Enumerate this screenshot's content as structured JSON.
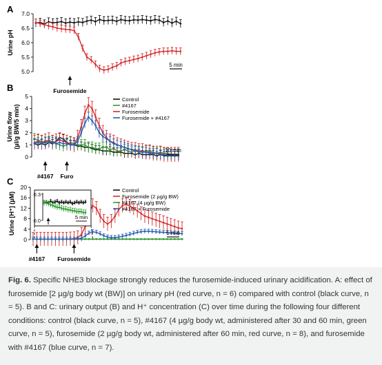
{
  "chart_data": [
    {
      "panel": "A",
      "type": "line",
      "ylabel": "Urine pH",
      "ylim": [
        5.0,
        7.0
      ],
      "yticks": [
        "5.0",
        "5.5",
        "6.0",
        "6.5",
        "7.0"
      ],
      "xlim": [
        0,
        35
      ],
      "time_scale_label": "5 min",
      "annotations": [
        {
          "label": "Furosemide",
          "x": 8
        }
      ],
      "series": [
        {
          "name": "Control",
          "color": "#111111",
          "err": 0.14,
          "x": [
            0,
            1,
            2,
            3,
            4,
            5,
            6,
            7,
            8,
            9,
            10,
            11,
            12,
            13,
            14,
            15,
            16,
            17,
            18,
            19,
            20,
            21,
            22,
            23,
            24,
            25,
            26,
            27,
            28,
            29,
            30,
            31,
            32,
            33,
            34
          ],
          "y": [
            6.68,
            6.7,
            6.65,
            6.72,
            6.69,
            6.7,
            6.73,
            6.68,
            6.71,
            6.69,
            6.72,
            6.7,
            6.75,
            6.78,
            6.73,
            6.8,
            6.76,
            6.77,
            6.78,
            6.74,
            6.8,
            6.77,
            6.76,
            6.79,
            6.78,
            6.8,
            6.78,
            6.76,
            6.8,
            6.78,
            6.7,
            6.75,
            6.68,
            6.74,
            6.66
          ]
        },
        {
          "name": "Furosemide",
          "color": "#d62b2b",
          "err": 0.12,
          "x": [
            0,
            1,
            2,
            3,
            4,
            5,
            6,
            7,
            8,
            9,
            10,
            11,
            12,
            13,
            14,
            15,
            16,
            17,
            18,
            19,
            20,
            21,
            22,
            23,
            24,
            25,
            26,
            27,
            28,
            29,
            30,
            31,
            32,
            33,
            34
          ],
          "y": [
            6.7,
            6.66,
            6.62,
            6.58,
            6.55,
            6.5,
            6.48,
            6.46,
            6.45,
            6.42,
            6.2,
            5.8,
            5.5,
            5.4,
            5.25,
            5.1,
            5.05,
            5.08,
            5.15,
            5.2,
            5.3,
            5.35,
            5.38,
            5.42,
            5.45,
            5.5,
            5.55,
            5.6,
            5.65,
            5.68,
            5.7,
            5.7,
            5.72,
            5.7,
            5.7
          ]
        }
      ]
    },
    {
      "panel": "B",
      "type": "line",
      "ylabel": "Urine flow\n(µl/g BW/5 min)",
      "ylim": [
        0,
        5
      ],
      "yticks": [
        "0",
        "1",
        "2",
        "3",
        "4",
        "5"
      ],
      "xlim": [
        0,
        41
      ],
      "time_scale_label": "10 min",
      "annotations": [
        {
          "label": "#4167",
          "x": 3
        },
        {
          "label": "Furo",
          "x": 9
        }
      ],
      "legend": {
        "position": "top-right",
        "entries": [
          "Control",
          "#4167",
          "Furosemide",
          "Furosemide + #4167"
        ]
      },
      "series": [
        {
          "name": "Control",
          "color": "#111111",
          "err": 0.35,
          "x": [
            0,
            1,
            2,
            3,
            4,
            5,
            6,
            7,
            8,
            9,
            10,
            11,
            12,
            13,
            14,
            15,
            16,
            17,
            18,
            19,
            20,
            21,
            22,
            23,
            24,
            25,
            26,
            27,
            28,
            29,
            30,
            31,
            32,
            33,
            34,
            35,
            36,
            37,
            38,
            39,
            40
          ],
          "y": [
            1.1,
            1.0,
            1.1,
            1.0,
            1.2,
            1.1,
            1.3,
            1.6,
            1.5,
            1.2,
            1.0,
            1.0,
            0.9,
            0.9,
            0.8,
            0.8,
            0.7,
            0.6,
            0.6,
            0.5,
            0.5,
            0.5,
            0.4,
            0.4,
            0.4,
            0.3,
            0.3,
            0.3,
            0.2,
            0.3,
            0.2,
            0.2,
            0.2,
            0.2,
            0.1,
            0.2,
            0.1,
            0.1,
            0.1,
            0.1,
            0.1
          ]
        },
        {
          "name": "#4167",
          "color": "#2e9e2e",
          "err": 0.45,
          "x": [
            0,
            1,
            2,
            3,
            4,
            5,
            6,
            7,
            8,
            9,
            10,
            11,
            12,
            13,
            14,
            15,
            16,
            17,
            18,
            19,
            20,
            21,
            22,
            23,
            24,
            25,
            26,
            27,
            28,
            29,
            30,
            31,
            32,
            33,
            34,
            35,
            36,
            37,
            38,
            39,
            40
          ],
          "y": [
            1.5,
            1.4,
            1.3,
            1.2,
            1.2,
            1.3,
            1.1,
            1.0,
            0.9,
            1.0,
            1.2,
            1.1,
            1.0,
            1.0,
            1.0,
            0.8,
            0.8,
            0.7,
            0.7,
            0.8,
            0.8,
            0.6,
            0.7,
            0.5,
            0.5,
            0.6,
            0.5,
            0.4,
            0.5,
            0.4,
            0.4,
            0.5,
            0.5,
            0.4,
            0.3,
            0.4,
            0.3,
            0.3,
            0.2,
            0.2,
            0.2
          ]
        },
        {
          "name": "Furosemide",
          "color": "#d62b2b",
          "err": 0.6,
          "x": [
            0,
            1,
            2,
            3,
            4,
            5,
            6,
            7,
            8,
            9,
            10,
            11,
            12,
            13,
            14,
            15,
            16,
            17,
            18,
            19,
            20,
            21,
            22,
            23,
            24,
            25,
            26,
            27,
            28,
            29,
            30,
            31,
            32,
            33,
            34,
            35,
            36,
            37,
            38,
            39,
            40
          ],
          "y": [
            1.2,
            1.3,
            1.2,
            1.3,
            1.4,
            1.2,
            1.3,
            1.4,
            1.3,
            1.2,
            1.1,
            1.0,
            1.6,
            2.5,
            3.6,
            4.3,
            4.0,
            3.3,
            2.6,
            2.0,
            1.6,
            1.3,
            1.2,
            1.0,
            0.9,
            0.8,
            0.7,
            0.6,
            0.6,
            0.5,
            0.5,
            0.4,
            0.4,
            0.3,
            0.3,
            0.3,
            0.2,
            0.2,
            0.2,
            0.2,
            0.2
          ]
        },
        {
          "name": "Furosemide + #4167",
          "color": "#2a5db0",
          "err": 0.4,
          "x": [
            0,
            1,
            2,
            3,
            4,
            5,
            6,
            7,
            8,
            9,
            10,
            11,
            12,
            13,
            14,
            15,
            16,
            17,
            18,
            19,
            20,
            21,
            22,
            23,
            24,
            25,
            26,
            27,
            28,
            29,
            30,
            31,
            32,
            33,
            34,
            35,
            36,
            37,
            38,
            39,
            40
          ],
          "y": [
            1.1,
            1.2,
            1.1,
            1.2,
            1.3,
            1.2,
            1.1,
            1.2,
            1.1,
            1.1,
            1.0,
            1.0,
            1.3,
            2.0,
            2.8,
            3.3,
            3.0,
            2.6,
            2.0,
            1.7,
            1.5,
            1.3,
            1.1,
            1.0,
            0.9,
            0.8,
            0.7,
            0.6,
            0.5,
            0.5,
            0.4,
            0.4,
            0.3,
            0.3,
            0.3,
            0.2,
            0.2,
            0.2,
            0.2,
            0.2,
            0.2
          ]
        }
      ]
    },
    {
      "panel": "C",
      "type": "line",
      "ylabel": "Urine [H⁺] (µM)",
      "ylim": [
        0,
        20
      ],
      "yticks": [
        "0",
        "4",
        "8",
        "12",
        "16",
        "20"
      ],
      "xlim": [
        0,
        40
      ],
      "time_scale_label": "5 min",
      "annotations": [
        {
          "label": "#4167",
          "x": 1
        },
        {
          "label": "Furosemide",
          "x": 11
        }
      ],
      "legend": {
        "position": "top-right",
        "entries": [
          "Control",
          "Furosemide (2 µg/g BW)",
          "#4167 (4 µg/g BW)",
          "#4167 + Furosemide"
        ]
      },
      "inset": {
        "ylim": [
          0,
          0.3
        ],
        "yticks": [
          "0.0",
          "0.3"
        ],
        "time_scale_label": "5 min",
        "series": [
          {
            "name": "Control",
            "color": "#111111",
            "err": 0.02,
            "x": [
              0,
              1,
              2,
              3,
              4,
              5,
              6,
              7,
              8,
              9,
              10,
              11,
              12,
              13,
              14,
              15,
              16,
              17,
              18,
              19
            ],
            "y": [
              0.2,
              0.21,
              0.2,
              0.22,
              0.2,
              0.21,
              0.22,
              0.2,
              0.21,
              0.2,
              0.21,
              0.2,
              0.21,
              0.19,
              0.2,
              0.21,
              0.2,
              0.21,
              0.2,
              0.21
            ]
          },
          {
            "name": "#4167",
            "color": "#2e9e2e",
            "err": 0.03,
            "x": [
              0,
              1,
              2,
              3,
              4,
              5,
              6,
              7,
              8,
              9,
              10,
              11,
              12,
              13,
              14,
              15,
              16,
              17,
              18,
              19
            ],
            "y": [
              0.2,
              0.2,
              0.19,
              0.18,
              0.17,
              0.16,
              0.15,
              0.15,
              0.14,
              0.13,
              0.13,
              0.12,
              0.12,
              0.11,
              0.11,
              0.1,
              0.1,
              0.1,
              0.09,
              0.09
            ]
          }
        ]
      },
      "series": [
        {
          "name": "Control",
          "color": "#111111",
          "err": 0.1,
          "x": [
            0,
            1,
            2,
            3,
            4,
            5,
            6,
            7,
            8,
            9,
            10,
            11,
            12,
            13,
            14,
            15,
            16,
            17,
            18,
            19,
            20,
            21,
            22,
            23,
            24,
            25,
            26,
            27,
            28,
            29,
            30,
            31,
            32,
            33,
            34,
            35,
            36,
            37,
            38,
            39,
            40
          ],
          "y": [
            0.2,
            0.2,
            0.2,
            0.2,
            0.2,
            0.2,
            0.2,
            0.2,
            0.2,
            0.2,
            0.2,
            0.2,
            0.2,
            0.2,
            0.2,
            0.2,
            0.2,
            0.2,
            0.2,
            0.2,
            0.2,
            0.2,
            0.2,
            0.2,
            0.2,
            0.2,
            0.2,
            0.2,
            0.2,
            0.2,
            0.2,
            0.2,
            0.2,
            0.2,
            0.2,
            0.2,
            0.2,
            0.2,
            0.2,
            0.2,
            0.2
          ]
        },
        {
          "name": "Furosemide (2 µg/g BW)",
          "color": "#d62b2b",
          "err": 2.6,
          "x": [
            0,
            1,
            2,
            3,
            4,
            5,
            6,
            7,
            8,
            9,
            10,
            11,
            12,
            13,
            14,
            15,
            16,
            17,
            18,
            19,
            20,
            21,
            22,
            23,
            24,
            25,
            26,
            27,
            28,
            29,
            30,
            31,
            32,
            33,
            34,
            35,
            36,
            37,
            38,
            39,
            40
          ],
          "y": [
            0.2,
            0.2,
            0.2,
            0.2,
            0.2,
            0.2,
            0.2,
            0.2,
            0.2,
            0.2,
            0.3,
            0.4,
            0.8,
            2.0,
            5.0,
            10.0,
            13.0,
            12.0,
            9.0,
            7.0,
            6.0,
            7.0,
            9.0,
            11.5,
            13.0,
            13.5,
            12.8,
            12.0,
            11.0,
            10.0,
            9.0,
            8.5,
            8.0,
            7.5,
            7.0,
            6.5,
            6.0,
            5.5,
            5.0,
            4.5,
            4.2
          ]
        },
        {
          "name": "#4167 (4 µg/g BW)",
          "color": "#2e9e2e",
          "err": 0.1,
          "x": [
            0,
            1,
            2,
            3,
            4,
            5,
            6,
            7,
            8,
            9,
            10,
            11,
            12,
            13,
            14,
            15,
            16,
            17,
            18,
            19,
            20,
            21,
            22,
            23,
            24,
            25,
            26,
            27,
            28,
            29,
            30,
            31,
            32,
            33,
            34,
            35,
            36,
            37,
            38,
            39,
            40
          ],
          "y": [
            0.2,
            0.2,
            0.2,
            0.2,
            0.2,
            0.2,
            0.2,
            0.2,
            0.2,
            0.2,
            0.2,
            0.2,
            0.2,
            0.2,
            0.2,
            0.2,
            0.2,
            0.2,
            0.2,
            0.2,
            0.2,
            0.2,
            0.2,
            0.2,
            0.2,
            0.2,
            0.2,
            0.2,
            0.2,
            0.2,
            0.2,
            0.2,
            0.2,
            0.2,
            0.2,
            0.2,
            0.2,
            0.2,
            0.2,
            0.2,
            0.2
          ]
        },
        {
          "name": "#4167 + Furosemide",
          "color": "#2a5db0",
          "err": 0.8,
          "x": [
            0,
            1,
            2,
            3,
            4,
            5,
            6,
            7,
            8,
            9,
            10,
            11,
            12,
            13,
            14,
            15,
            16,
            17,
            18,
            19,
            20,
            21,
            22,
            23,
            24,
            25,
            26,
            27,
            28,
            29,
            30,
            31,
            32,
            33,
            34,
            35,
            36,
            37,
            38,
            39,
            40
          ],
          "y": [
            0.2,
            0.2,
            0.2,
            0.2,
            0.2,
            0.2,
            0.2,
            0.2,
            0.2,
            0.2,
            0.2,
            0.2,
            0.3,
            0.6,
            1.4,
            2.5,
            3.0,
            2.8,
            2.2,
            1.5,
            1.0,
            0.8,
            0.8,
            1.0,
            1.3,
            1.6,
            2.0,
            2.4,
            2.8,
            3.0,
            3.2,
            3.2,
            3.1,
            3.0,
            2.9,
            2.8,
            2.7,
            2.6,
            2.5,
            2.4,
            2.3
          ]
        }
      ]
    }
  ],
  "caption": {
    "label": "Fig. 6.",
    "text": " Specific NHE3 blockage strongly reduces the furosemide-induced urinary acidification. A: effect of furosemide [2 µg/g body wt (BW)] on urinary pH (red curve, n = 6) compared with control (black curve, n = 5). B and C: urinary output (B) and H⁺ concentration (C) over time during the following four different conditions: control (black curve, n = 5), #4167 (4 µg/g body wt, administered after 30 and 60 min, green curve, n = 5), furosemide (2 µg/g body wt, administered after 60 min, red curve, n = 8), and furosemide with #4167 (blue curve, n = 7)."
  }
}
